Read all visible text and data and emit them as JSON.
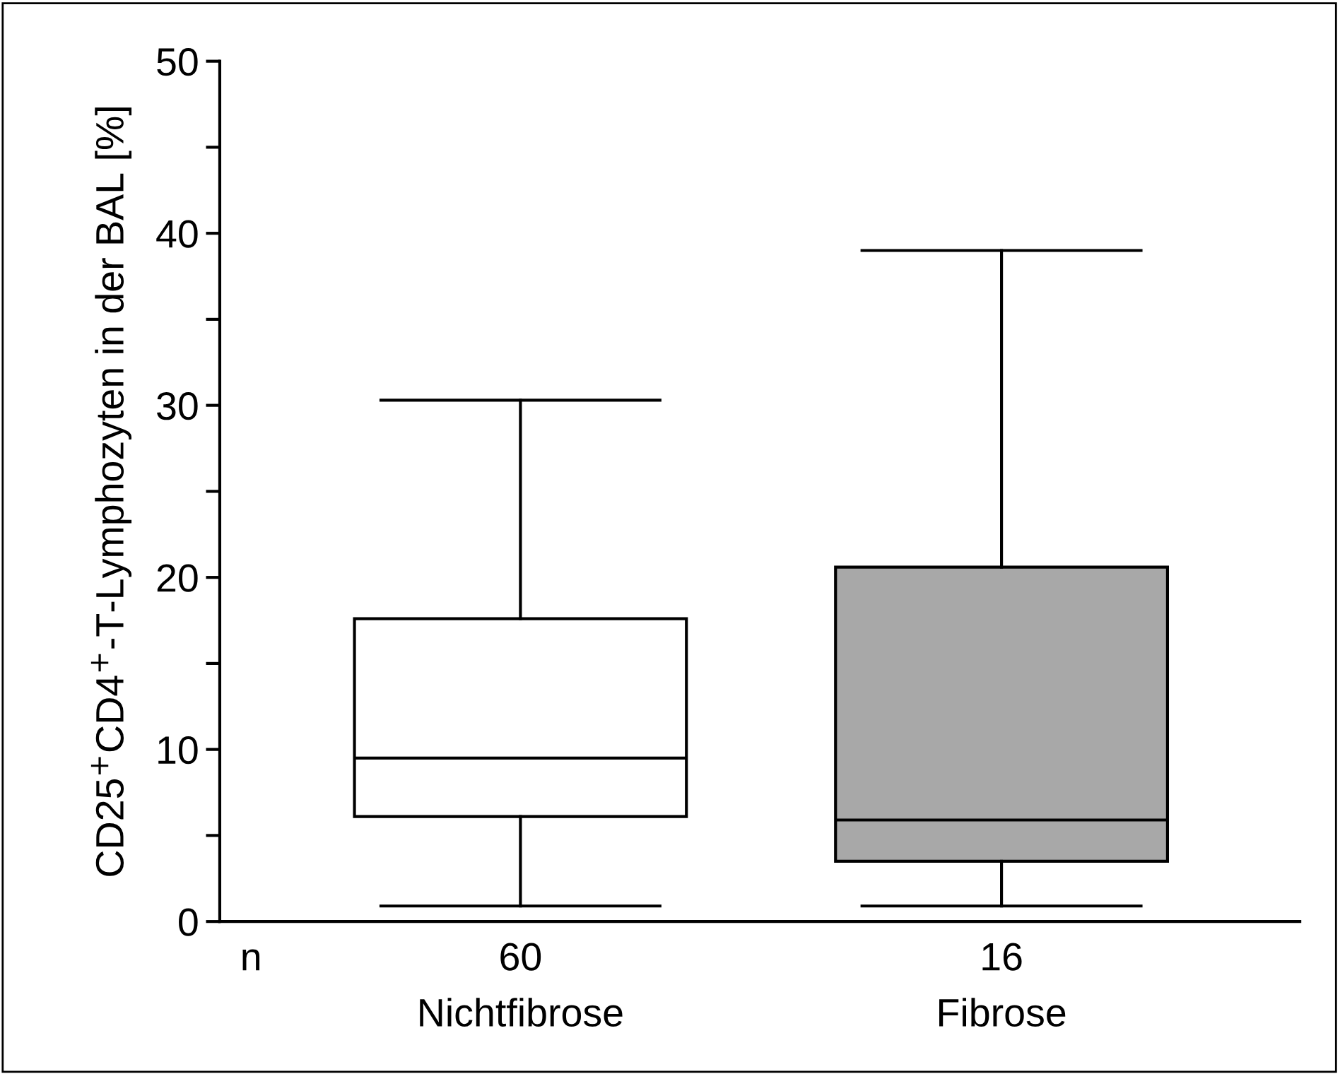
{
  "chart_data": {
    "type": "box",
    "ylabel": "CD25$^{+}$CD4$^{+}$-T-Lymphozyten in der BAL [%]",
    "categories": [
      "Nichtfibrose",
      "Fibrose"
    ],
    "series": [
      {
        "colors": [
          "#ffffff",
          "#a8a8a8"
        ],
        "boxes": [
          {
            "low": 0.9,
            "q1": 6.1,
            "median": 9.5,
            "q3": 17.6,
            "high": 30.3
          },
          {
            "low": 0.9,
            "q1": 3.5,
            "median": 5.9,
            "q3": 20.6,
            "high": 39.0
          }
        ]
      }
    ],
    "ylim": [
      0,
      50
    ],
    "yticks": [
      0,
      {
        "value": 5,
        "label": null
      },
      10,
      {
        "value": 15,
        "label": null
      },
      20,
      {
        "value": 25,
        "label": null
      },
      30,
      {
        "value": 35,
        "label": null
      },
      40,
      {
        "value": 45,
        "label": null
      },
      50
    ],
    "annotations": [
      "n",
      "60",
      "16"
    ],
    "grid": false
  }
}
